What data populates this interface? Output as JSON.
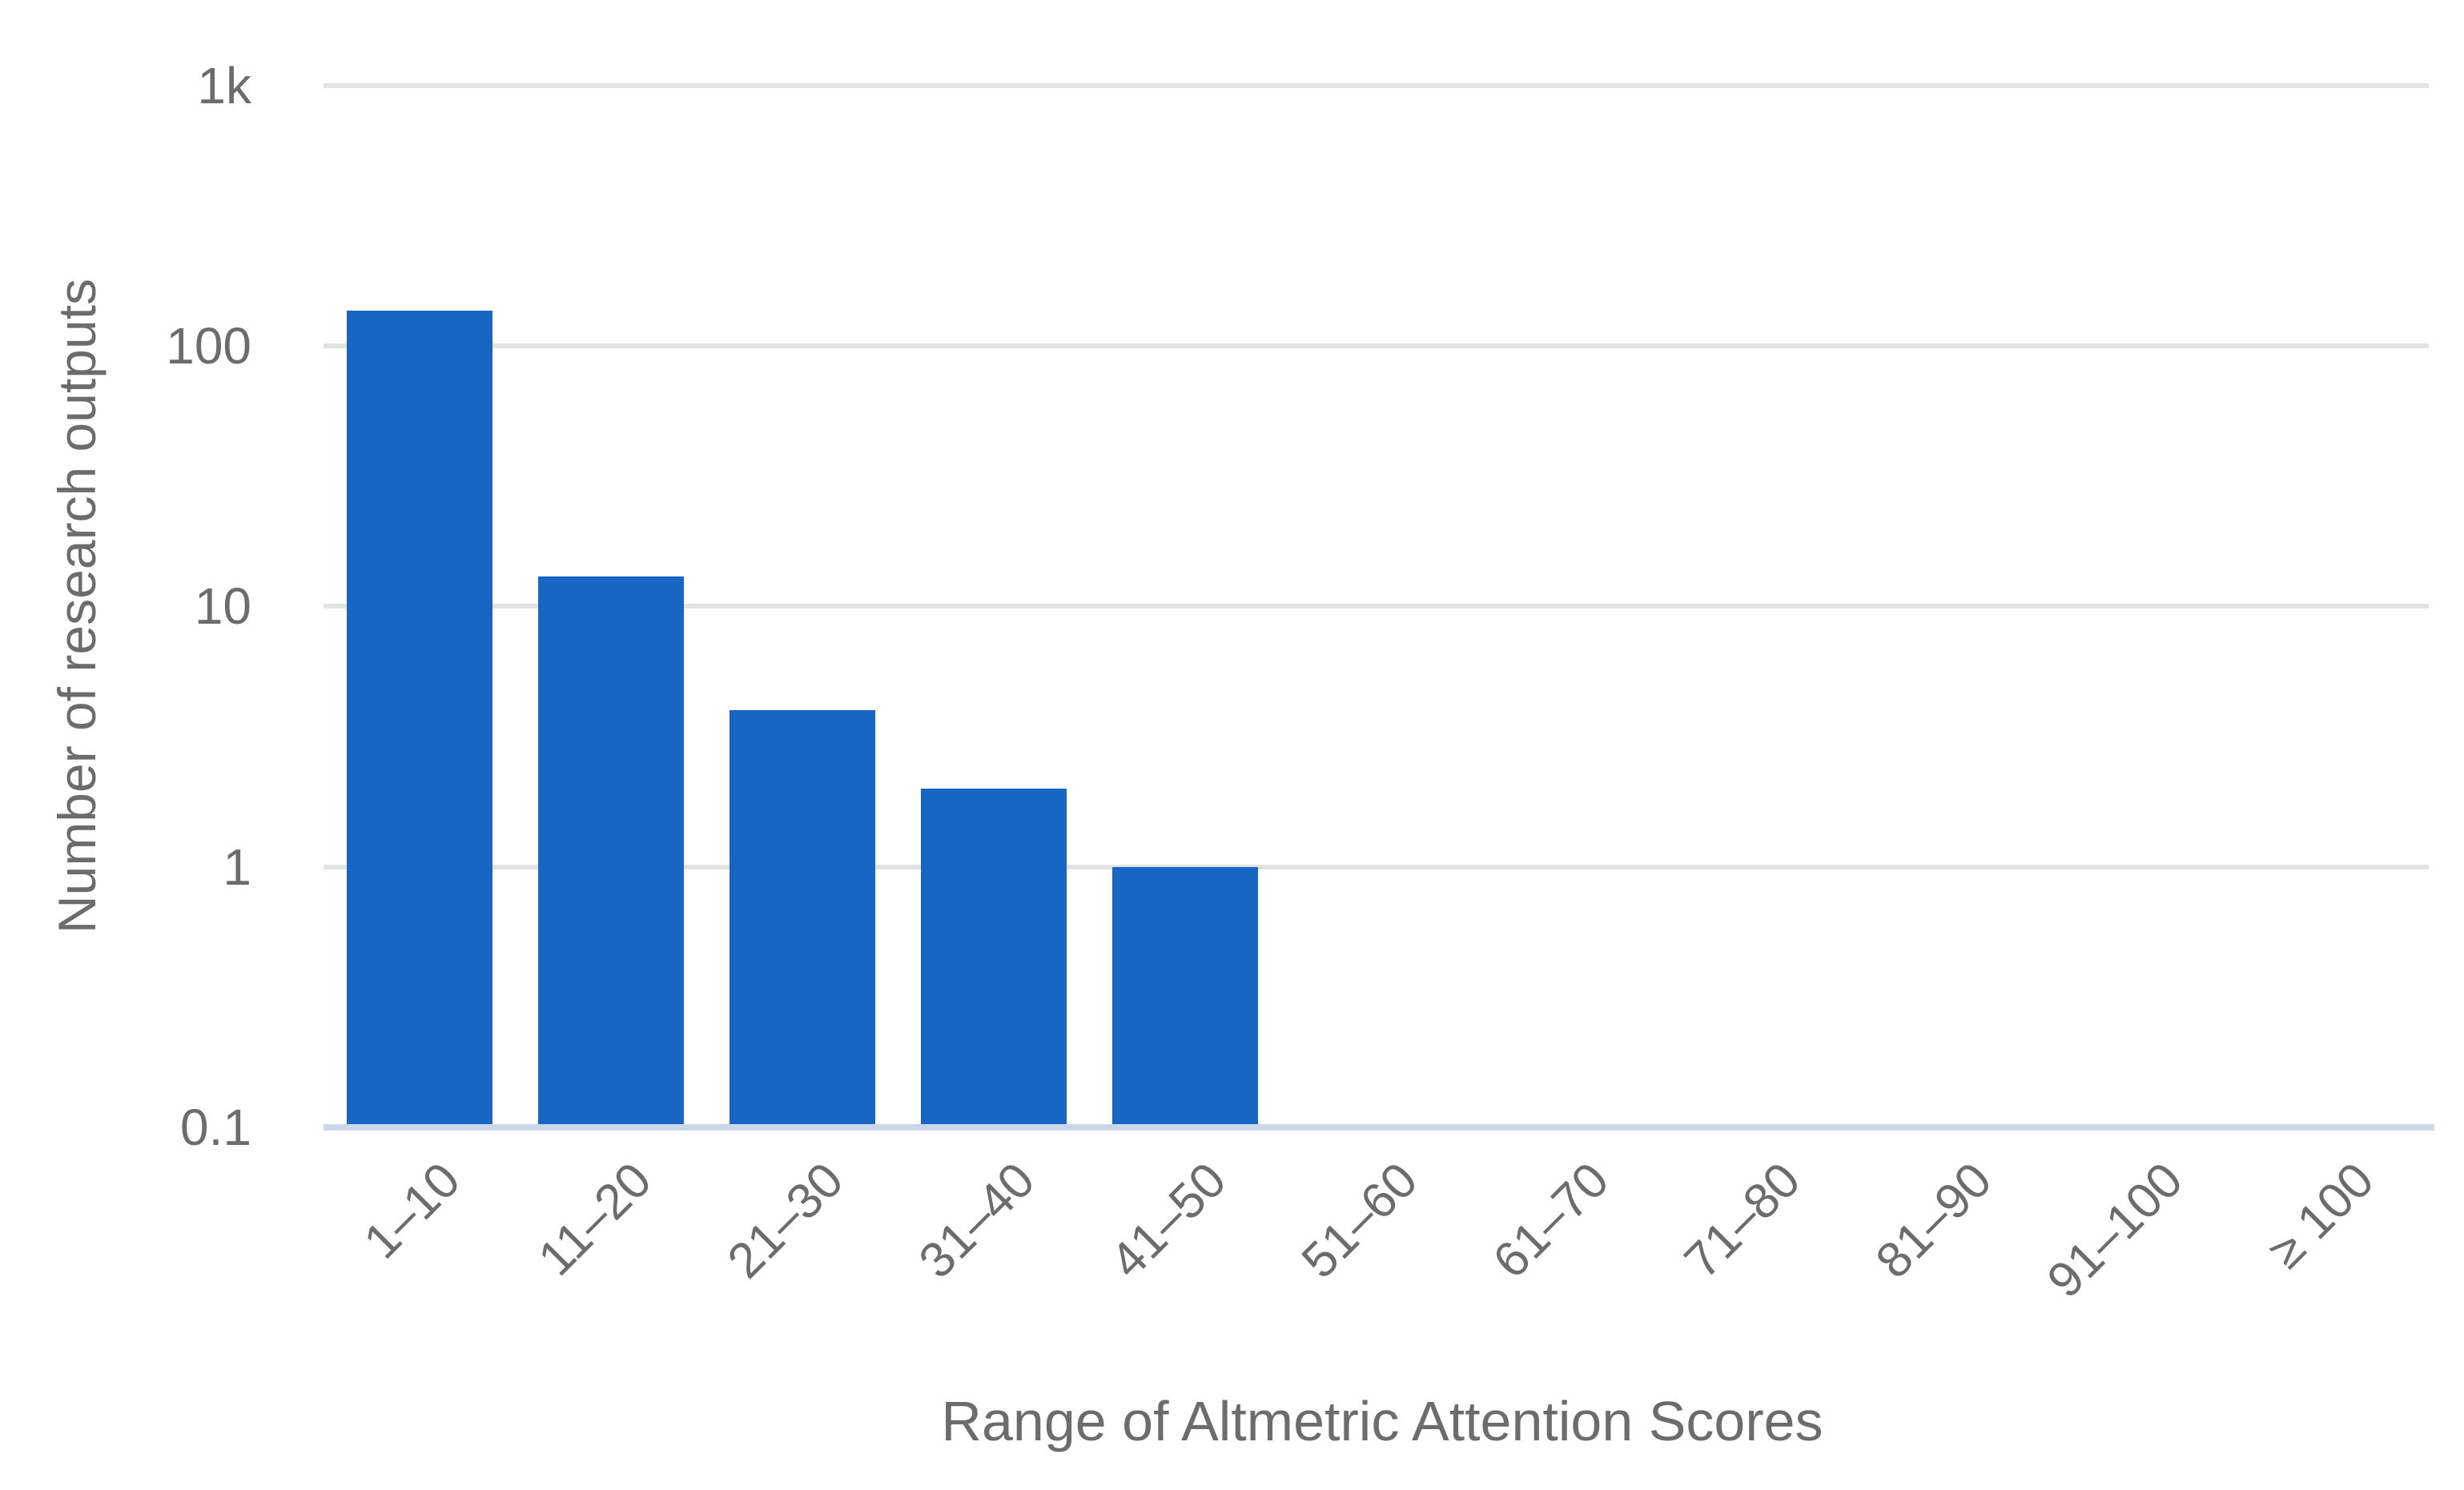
{
  "chart_data": {
    "type": "bar",
    "title": "",
    "xlabel": "Range of Altmetric Attention Scores",
    "ylabel": "Number of research outputs",
    "categories": [
      "1–10",
      "11–20",
      "21–30",
      "31–40",
      "41–50",
      "51–60",
      "61–70",
      "71–80",
      "81–90",
      "91–100",
      "≥ 100"
    ],
    "values": [
      137,
      13,
      4,
      2,
      1,
      0,
      0,
      0,
      0,
      0,
      0
    ],
    "y_scale": "log",
    "ylim": [
      0.1,
      1000
    ],
    "y_ticks": [
      {
        "label": "1k",
        "value": 1000
      },
      {
        "label": "100",
        "value": 100
      },
      {
        "label": "10",
        "value": 10
      },
      {
        "label": "1",
        "value": 1
      },
      {
        "label": "0.1",
        "value": 0.1
      }
    ],
    "grid": true,
    "legend": "none",
    "colors": {
      "bar": "#1766C4",
      "gridline": "#E3E3E3",
      "axis_line": "#CCD6E9",
      "text": "#6C6C6C"
    }
  }
}
